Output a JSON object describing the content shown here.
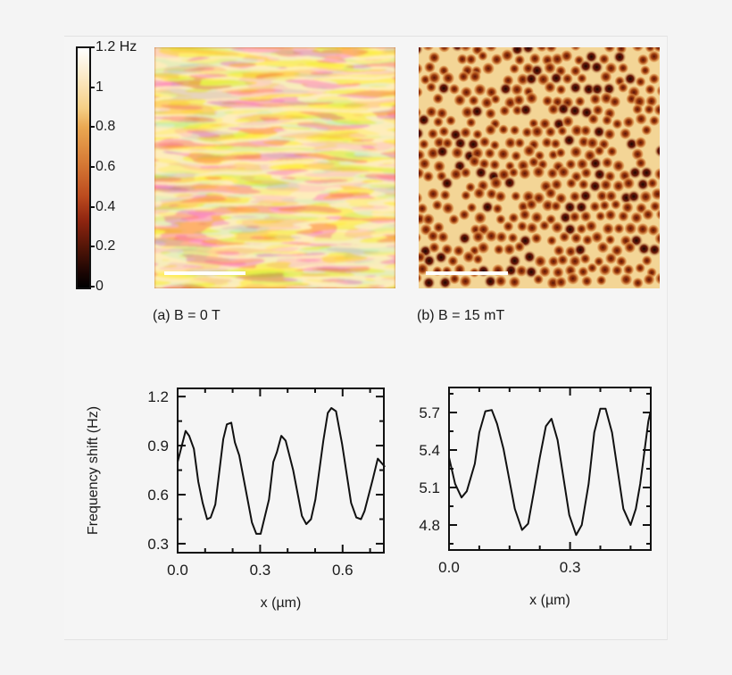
{
  "colorbar": {
    "unit": "Hz",
    "labels": [
      "1.2",
      "1",
      "0.8",
      "0.6",
      "0.4",
      "0.2",
      "0"
    ],
    "top_label": "1.2  Hz",
    "range": [
      0,
      1.2
    ],
    "colors": [
      "#ffffff",
      "#f5cf86",
      "#d67a35",
      "#8f2510",
      "#000000"
    ]
  },
  "panels": {
    "a": {
      "caption": "(a) B = 0 T",
      "pattern": "stripe domains",
      "has_scale_bar": true
    },
    "b": {
      "caption": "(b) B = 15 mT",
      "pattern": "bubble domains",
      "has_scale_bar": true
    }
  },
  "chart_data": [
    {
      "type": "line",
      "title": "",
      "xlabel": "x (µm)",
      "ylabel": "Frequency shift (Hz)",
      "xlim": [
        0,
        0.75
      ],
      "ylim": [
        0.245,
        1.25
      ],
      "xticks": [
        0.0,
        0.3,
        0.6
      ],
      "xtick_labels": [
        "0.0",
        "0.3",
        "0.6"
      ],
      "yticks": [
        0.3,
        0.6,
        0.9,
        1.2
      ],
      "ytick_labels": [
        "0.3",
        "0.6",
        "0.9",
        "1.2"
      ],
      "x_minor_step": 0.1,
      "y_minor_step": 0.15,
      "grid": false,
      "x": [
        0.0,
        0.029,
        0.042,
        0.059,
        0.075,
        0.091,
        0.107,
        0.12,
        0.137,
        0.166,
        0.179,
        0.195,
        0.208,
        0.224,
        0.27,
        0.286,
        0.302,
        0.332,
        0.348,
        0.361,
        0.377,
        0.393,
        0.42,
        0.452,
        0.468,
        0.485,
        0.501,
        0.53,
        0.546,
        0.559,
        0.576,
        0.598,
        0.631,
        0.65,
        0.667,
        0.68,
        0.709,
        0.728,
        0.754
      ],
      "y": [
        0.8,
        0.99,
        0.96,
        0.88,
        0.68,
        0.55,
        0.45,
        0.46,
        0.54,
        0.94,
        1.03,
        1.04,
        0.92,
        0.84,
        0.43,
        0.36,
        0.36,
        0.57,
        0.8,
        0.86,
        0.96,
        0.93,
        0.75,
        0.47,
        0.42,
        0.45,
        0.57,
        0.93,
        1.1,
        1.13,
        1.11,
        0.91,
        0.55,
        0.46,
        0.45,
        0.5,
        0.69,
        0.82,
        0.77
      ]
    },
    {
      "type": "line",
      "title": "",
      "xlabel": "x (µm)",
      "ylabel": "",
      "xlim": [
        0,
        0.5
      ],
      "ylim": [
        4.6,
        5.9
      ],
      "xticks": [
        0.0,
        0.3
      ],
      "xtick_labels": [
        "0.0",
        "0.3"
      ],
      "yticks": [
        4.8,
        5.1,
        5.4,
        5.7
      ],
      "ytick_labels": [
        "4.8",
        "5.1",
        "5.4",
        "5.7"
      ],
      "x_minor_step": 0.075,
      "y_minor_step": 0.15,
      "grid": false,
      "x": [
        0.0,
        0.015,
        0.031,
        0.044,
        0.064,
        0.075,
        0.09,
        0.106,
        0.119,
        0.135,
        0.163,
        0.181,
        0.196,
        0.21,
        0.225,
        0.24,
        0.254,
        0.269,
        0.298,
        0.315,
        0.329,
        0.346,
        0.36,
        0.375,
        0.388,
        0.404,
        0.432,
        0.45,
        0.463,
        0.474,
        0.494,
        0.499
      ],
      "y": [
        5.34,
        5.13,
        5.02,
        5.07,
        5.29,
        5.54,
        5.71,
        5.72,
        5.61,
        5.41,
        4.93,
        4.76,
        4.81,
        5.06,
        5.34,
        5.59,
        5.65,
        5.48,
        4.88,
        4.72,
        4.8,
        5.13,
        5.54,
        5.73,
        5.73,
        5.54,
        4.93,
        4.8,
        4.93,
        5.13,
        5.63,
        5.7
      ]
    }
  ]
}
